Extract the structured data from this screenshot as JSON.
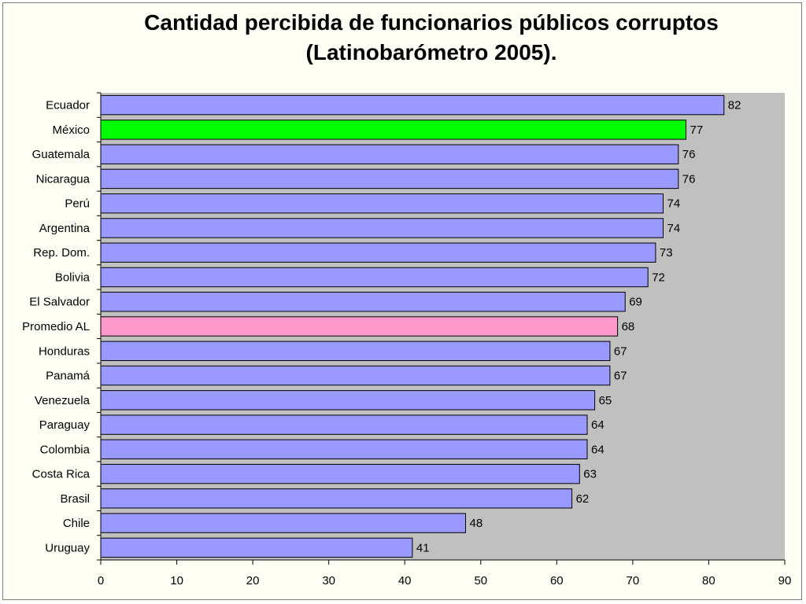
{
  "chart_data": {
    "type": "bar",
    "orientation": "horizontal",
    "title": "Cantidad percibida de funcionarios públicos corruptos",
    "subtitle": "(Latinobarómetro 2005).",
    "categories": [
      "Ecuador",
      "México",
      "Guatemala",
      "Nicaragua",
      "Perú",
      "Argentina",
      "Rep. Dom.",
      "Bolivia",
      "El Salvador",
      "Promedio AL",
      "Honduras",
      "Panamá",
      "Venezuela",
      "Paraguay",
      "Colombia",
      "Costa Rica",
      "Brasil",
      "Chile",
      "Uruguay"
    ],
    "values": [
      82,
      77,
      76,
      76,
      74,
      74,
      73,
      72,
      69,
      68,
      67,
      67,
      65,
      64,
      64,
      63,
      62,
      48,
      41
    ],
    "xlim": [
      0,
      90
    ],
    "xticks": [
      0,
      10,
      20,
      30,
      40,
      50,
      60,
      70,
      80,
      90
    ],
    "xlabel": "",
    "ylabel": "",
    "grid": false,
    "colors": {
      "default_bar": "#9999ff",
      "highlight_mexico": "#00ff00",
      "highlight_promedio": "#ff99cc",
      "plot_background": "#c0c0c0",
      "bar_border": "#000000"
    }
  }
}
